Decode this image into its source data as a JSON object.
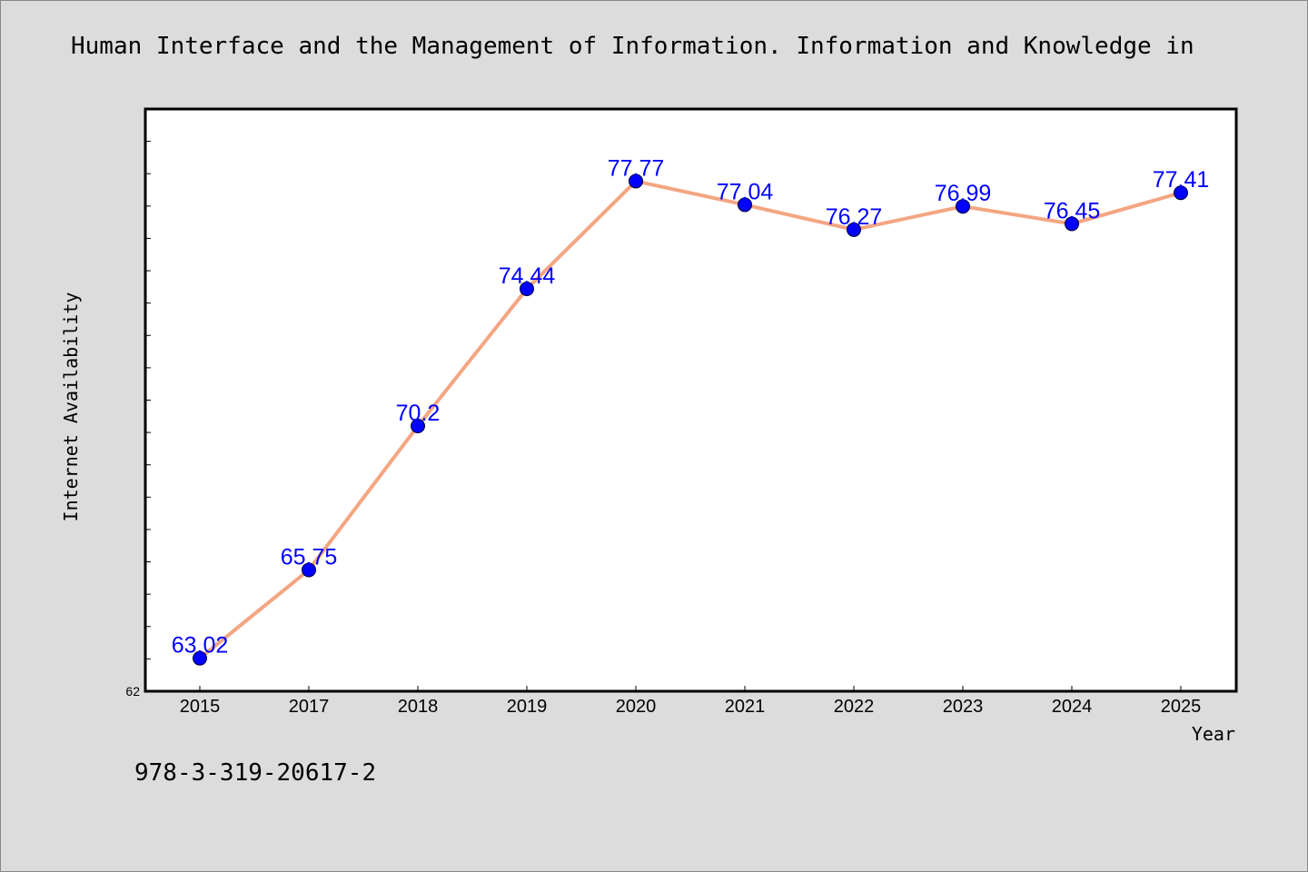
{
  "title": "Human Interface and the Management of Information. Information and Knowledge in",
  "footer": "978-3-319-20617-2",
  "chart_data": {
    "type": "line",
    "title": "Human Interface and the Management of Information. Information and Knowledge in",
    "xlabel": "Year",
    "ylabel": "Internet Availability",
    "categories": [
      "2015",
      "2017",
      "2018",
      "2019",
      "2020",
      "2021",
      "2022",
      "2023",
      "2024",
      "2025"
    ],
    "series": [
      {
        "values": [
          63.02,
          65.75,
          70.2,
          74.44,
          77.77,
          77.04,
          76.27,
          76.99,
          76.45,
          77.41
        ],
        "data_labels": [
          "63.02",
          "65.75",
          "70.2",
          "74.44",
          "77.77",
          "77.04",
          "76.27",
          "76.99",
          "76.45",
          "77.41"
        ]
      }
    ],
    "ylim": [
      62,
      80
    ],
    "y_tick_labels": [
      "62"
    ],
    "grid": false,
    "colors": {
      "line": "#f4a582",
      "marker": "#0000ff",
      "label": "#0000ff"
    }
  }
}
